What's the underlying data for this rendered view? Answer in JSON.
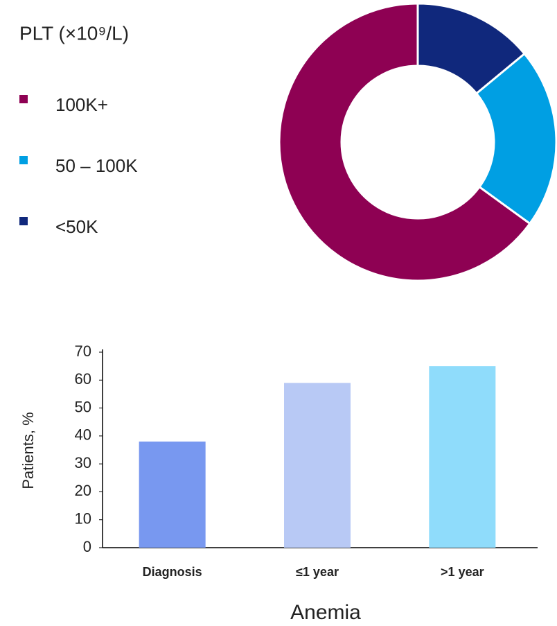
{
  "chart_data": [
    {
      "type": "pie",
      "title": "PLT (×10⁹/L)",
      "categories": [
        "100K+",
        "50 – 100K",
        "<50K"
      ],
      "values": [
        65,
        21,
        14
      ],
      "colors": [
        "#8e0153",
        "#009fe3",
        "#10287c"
      ]
    },
    {
      "type": "bar",
      "categories": [
        "Diagnosis",
        "≤1 year",
        ">1 year"
      ],
      "values": [
        38,
        59,
        65
      ],
      "colors": [
        "#7898f0",
        "#b8c9f5",
        "#8fdcfb"
      ],
      "xlabel": "Anemia",
      "ylabel": "Patients, %",
      "ylim": [
        0,
        70
      ],
      "yticks": [
        0,
        10,
        20,
        30,
        40,
        50,
        60,
        70
      ]
    }
  ]
}
